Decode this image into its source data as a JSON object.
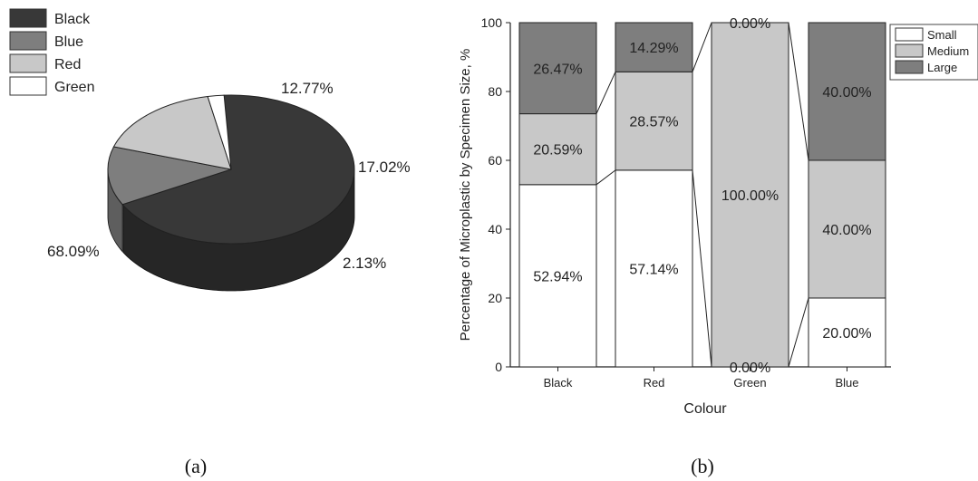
{
  "chart_data": [
    {
      "type": "pie",
      "caption": "(a)",
      "legend": [
        "Black",
        "Blue",
        "Red",
        "Green"
      ],
      "slices": [
        {
          "name": "Black",
          "value": 68.09,
          "label": "68.09%",
          "color": "#383838",
          "side_color": "#262626"
        },
        {
          "name": "Blue",
          "value": 12.77,
          "label": "12.77%",
          "color": "#7e7e7e",
          "side_color": "#5e5e5e"
        },
        {
          "name": "Red",
          "value": 17.02,
          "label": "17.02%",
          "color": "#c8c8c8",
          "side_color": "#9a9a9a"
        },
        {
          "name": "Green",
          "value": 2.13,
          "label": "2.13%",
          "color": "#ffffff",
          "side_color": "#d8d8d8"
        }
      ],
      "legend_placement": "top-left"
    },
    {
      "type": "bar",
      "stacked": true,
      "caption": "(b)",
      "xlabel": "Colour",
      "ylabel": "Percentage of Microplastic by Specimen Size, %",
      "ylim": [
        0,
        100
      ],
      "yticks": [
        "0",
        "20",
        "40",
        "60",
        "80",
        "100"
      ],
      "categories": [
        "Black",
        "Red",
        "Green",
        "Blue"
      ],
      "series": [
        {
          "name": "Small",
          "color": "#ffffff",
          "values": [
            52.94,
            57.14,
            0,
            20.0
          ],
          "labels": [
            "52.94%",
            "57.14%",
            "0.00%",
            "20.00%"
          ]
        },
        {
          "name": "Medium",
          "color": "#c8c8c8",
          "values": [
            20.59,
            28.57,
            100.0,
            40.0
          ],
          "labels": [
            "20.59%",
            "28.57%",
            "100.00%",
            "40.00%"
          ]
        },
        {
          "name": "Large",
          "color": "#7e7e7e",
          "values": [
            26.47,
            14.29,
            0,
            40.0
          ],
          "labels": [
            "26.47%",
            "14.29%",
            "0.00%",
            "40.00%"
          ]
        }
      ],
      "legend_placement": "top-right"
    }
  ]
}
